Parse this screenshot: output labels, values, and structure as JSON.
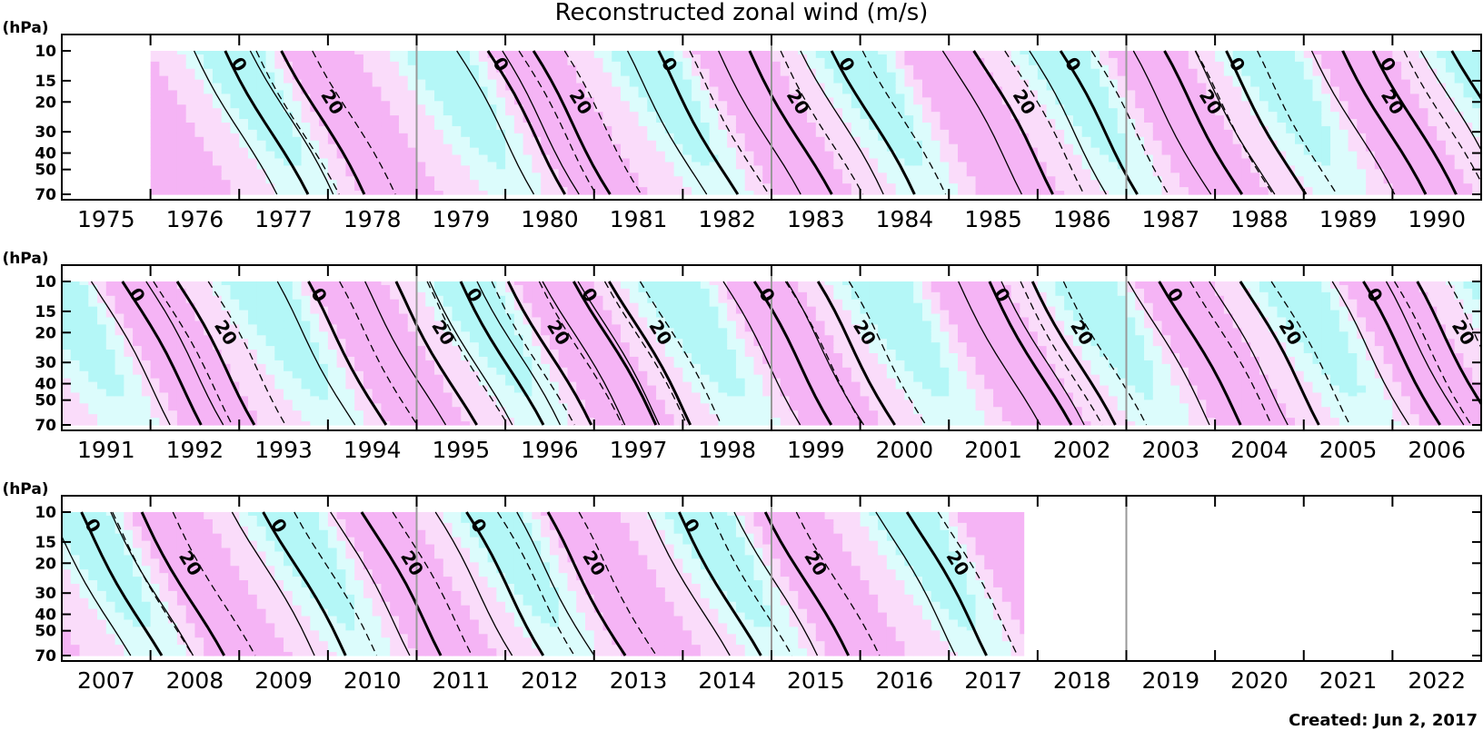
{
  "chart_data": {
    "type": "heatmap",
    "title": "Reconstructed zonal wind (m/s)",
    "ylabel": "(hPa)",
    "y_ticks": [
      10,
      15,
      20,
      30,
      40,
      50,
      70
    ],
    "y_scale": "log",
    "ylim": [
      70,
      10
    ],
    "contour_labels": [
      "0",
      "20"
    ],
    "colors": {
      "westerly_light": "#fadcfa",
      "westerly_medium": "#f5b4f5",
      "westerly_strong": "#ee88ee",
      "easterly_light": "#dcfcfc",
      "easterly_medium": "#b4f7f7",
      "easterly_strong": "#84f0f0"
    },
    "data_start_year": 1975.5,
    "data_end_year": 2017.35,
    "panels": [
      {
        "years": [
          "1975",
          "1976",
          "1977",
          "1978",
          "1979",
          "1980",
          "1981",
          "1982",
          "1983",
          "1984",
          "1985",
          "1986",
          "1987",
          "1988",
          "1989",
          "1990"
        ],
        "phase_transitions_to_easterly": [
          1976.35,
          1979.3,
          1981.2,
          1983.2,
          1985.75,
          1987.6,
          1989.3
        ],
        "phase_transitions_to_westerly": [
          1977.0,
          1979.8,
          1982.25,
          1984.8,
          1986.9,
          1988.95,
          1990.2
        ]
      },
      {
        "years": [
          "1991",
          "1992",
          "1993",
          "1994",
          "1995",
          "1996",
          "1997",
          "1998",
          "1999",
          "2000",
          "2001",
          "2002",
          "2003",
          "2004",
          "2005",
          "2006"
        ],
        "phase_transitions_to_easterly": [
          1991.2,
          1993.25,
          1995.0,
          1996.3,
          1998.3,
          2000.95,
          2002.9,
          2005.15
        ],
        "phase_transitions_to_westerly": [
          1991.8,
          1994.25,
          1995.55,
          1996.7,
          1999.0,
          2001.45,
          2003.8,
          2005.75
        ]
      },
      {
        "years": [
          "2007",
          "2008",
          "2009",
          "2010",
          "2011",
          "2012",
          "2013",
          "2014",
          "2015",
          "2016",
          "2017",
          "2018",
          "2019",
          "2020",
          "2021",
          "2022"
        ],
        "phase_transitions_to_easterly": [
          2006.7,
          2008.8,
          2011.05,
          2013.45
        ],
        "phase_transitions_to_westerly": [
          2007.4,
          2009.9,
          2011.95,
          2014.45,
          2016.05
        ]
      }
    ]
  },
  "credit": "Created: Jun 2, 2017"
}
